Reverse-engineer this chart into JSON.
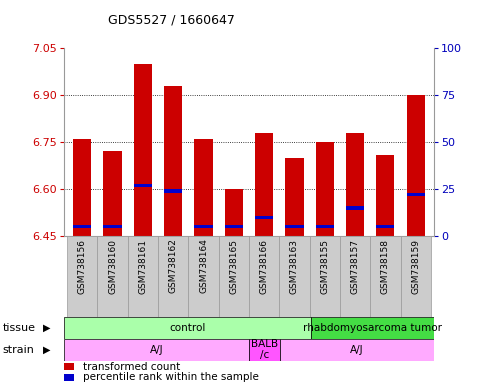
{
  "title": "GDS5527 / 1660647",
  "samples": [
    "GSM738156",
    "GSM738160",
    "GSM738161",
    "GSM738162",
    "GSM738164",
    "GSM738165",
    "GSM738166",
    "GSM738163",
    "GSM738155",
    "GSM738157",
    "GSM738158",
    "GSM738159"
  ],
  "red_values": [
    6.76,
    6.72,
    7.0,
    6.93,
    6.76,
    6.6,
    6.78,
    6.7,
    6.75,
    6.78,
    6.71,
    6.9
  ],
  "blue_pcts": [
    5,
    5,
    27,
    24,
    5,
    5,
    10,
    5,
    5,
    15,
    5,
    22
  ],
  "ymin": 6.45,
  "ymax": 7.05,
  "yticks_left": [
    6.45,
    6.6,
    6.75,
    6.9,
    7.05
  ],
  "yticks_right": [
    0,
    25,
    50,
    75,
    100
  ],
  "gridlines": [
    6.6,
    6.75,
    6.9
  ],
  "tissue_groups": [
    {
      "label": "control",
      "start": 0,
      "end": 8,
      "color": "#AAFFAA"
    },
    {
      "label": "rhabdomyosarcoma tumor",
      "start": 8,
      "end": 12,
      "color": "#44DD44"
    }
  ],
  "strain_groups": [
    {
      "label": "A/J",
      "start": 0,
      "end": 6,
      "color": "#FFAAFF"
    },
    {
      "label": "BALB\n/c",
      "start": 6,
      "end": 7,
      "color": "#FF55FF"
    },
    {
      "label": "A/J",
      "start": 7,
      "end": 12,
      "color": "#FFAAFF"
    }
  ],
  "bar_color": "#CC0000",
  "blue_color": "#0000CC",
  "left_tick_color": "#CC0000",
  "right_tick_color": "#0000BB",
  "xlabel_bg": "#DDDDDD"
}
